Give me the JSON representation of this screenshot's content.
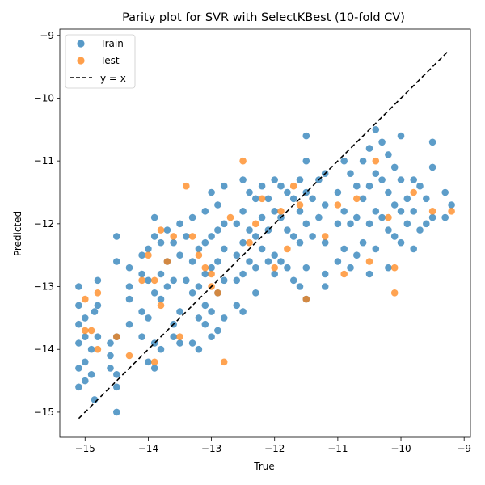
{
  "chart_data": {
    "type": "scatter",
    "title": "Parity plot for SVR with SelectKBest (10-fold CV)",
    "xlabel": "True",
    "ylabel": "Predicted",
    "xlim": [
      -15.4,
      -8.9
    ],
    "ylim": [
      -15.4,
      -8.9
    ],
    "xticks": [
      -15,
      -14,
      -13,
      -12,
      -11,
      -10,
      -9
    ],
    "yticks": [
      -15,
      -14,
      -13,
      -12,
      -11,
      -10,
      -9
    ],
    "tick_labels": [
      "−15",
      "−14",
      "−13",
      "−12",
      "−11",
      "−10",
      "−9"
    ],
    "grid": false,
    "legend_position": "top-left",
    "series": [
      {
        "name": "Train",
        "color": "#1f77b4",
        "points": [
          [
            -15.1,
            -13.0
          ],
          [
            -15.1,
            -13.3
          ],
          [
            -15.1,
            -13.6
          ],
          [
            -15.1,
            -13.9
          ],
          [
            -15.1,
            -14.3
          ],
          [
            -15.1,
            -14.6
          ],
          [
            -15.0,
            -13.5
          ],
          [
            -15.0,
            -13.8
          ],
          [
            -15.0,
            -14.2
          ],
          [
            -15.0,
            -14.5
          ],
          [
            -14.9,
            -14.0
          ],
          [
            -14.9,
            -14.4
          ],
          [
            -14.85,
            -13.4
          ],
          [
            -14.85,
            -14.8
          ],
          [
            -14.8,
            -13.3
          ],
          [
            -14.8,
            -13.8
          ],
          [
            -14.8,
            -12.9
          ],
          [
            -14.6,
            -13.9
          ],
          [
            -14.6,
            -14.3
          ],
          [
            -14.6,
            -14.1
          ],
          [
            -14.5,
            -12.2
          ],
          [
            -14.5,
            -12.6
          ],
          [
            -14.5,
            -13.8
          ],
          [
            -14.5,
            -14.4
          ],
          [
            -14.5,
            -14.6
          ],
          [
            -14.5,
            -15.0
          ],
          [
            -14.3,
            -12.7
          ],
          [
            -14.3,
            -13.0
          ],
          [
            -14.3,
            -13.2
          ],
          [
            -14.3,
            -13.6
          ],
          [
            -14.1,
            -12.5
          ],
          [
            -14.1,
            -12.8
          ],
          [
            -14.1,
            -13.4
          ],
          [
            -14.1,
            -13.8
          ],
          [
            -14.0,
            -12.4
          ],
          [
            -14.0,
            -12.9
          ],
          [
            -14.0,
            -13.5
          ],
          [
            -14.0,
            -14.2
          ],
          [
            -13.9,
            -11.9
          ],
          [
            -13.9,
            -12.2
          ],
          [
            -13.9,
            -13.1
          ],
          [
            -13.9,
            -13.9
          ],
          [
            -13.9,
            -14.3
          ],
          [
            -13.8,
            -12.3
          ],
          [
            -13.8,
            -12.8
          ],
          [
            -13.8,
            -13.2
          ],
          [
            -13.8,
            -14.0
          ],
          [
            -13.7,
            -12.1
          ],
          [
            -13.7,
            -12.6
          ],
          [
            -13.7,
            -13.0
          ],
          [
            -13.6,
            -12.3
          ],
          [
            -13.6,
            -12.9
          ],
          [
            -13.6,
            -13.6
          ],
          [
            -13.6,
            -13.8
          ],
          [
            -13.5,
            -12.0
          ],
          [
            -13.5,
            -12.5
          ],
          [
            -13.5,
            -13.4
          ],
          [
            -13.5,
            -13.9
          ],
          [
            -13.4,
            -12.2
          ],
          [
            -13.4,
            -12.9
          ],
          [
            -13.3,
            -11.9
          ],
          [
            -13.3,
            -12.6
          ],
          [
            -13.3,
            -13.1
          ],
          [
            -13.3,
            -13.9
          ],
          [
            -13.2,
            -12.4
          ],
          [
            -13.2,
            -13.0
          ],
          [
            -13.2,
            -13.5
          ],
          [
            -13.2,
            -14.0
          ],
          [
            -13.1,
            -11.8
          ],
          [
            -13.1,
            -12.3
          ],
          [
            -13.1,
            -12.8
          ],
          [
            -13.1,
            -13.3
          ],
          [
            -13.1,
            -13.6
          ],
          [
            -13.0,
            -11.5
          ],
          [
            -13.0,
            -12.2
          ],
          [
            -13.0,
            -12.7
          ],
          [
            -13.0,
            -13.4
          ],
          [
            -13.0,
            -13.8
          ],
          [
            -12.9,
            -11.7
          ],
          [
            -12.9,
            -12.1
          ],
          [
            -12.9,
            -12.6
          ],
          [
            -12.9,
            -13.1
          ],
          [
            -12.9,
            -13.7
          ],
          [
            -12.8,
            -11.4
          ],
          [
            -12.8,
            -12.0
          ],
          [
            -12.8,
            -12.4
          ],
          [
            -12.8,
            -12.9
          ],
          [
            -12.8,
            -13.5
          ],
          [
            -12.6,
            -12.0
          ],
          [
            -12.6,
            -12.5
          ],
          [
            -12.6,
            -12.9
          ],
          [
            -12.6,
            -13.3
          ],
          [
            -12.5,
            -11.3
          ],
          [
            -12.5,
            -11.8
          ],
          [
            -12.5,
            -12.3
          ],
          [
            -12.5,
            -12.8
          ],
          [
            -12.5,
            -13.4
          ],
          [
            -12.4,
            -11.5
          ],
          [
            -12.4,
            -12.1
          ],
          [
            -12.4,
            -12.6
          ],
          [
            -12.3,
            -11.6
          ],
          [
            -12.3,
            -12.2
          ],
          [
            -12.3,
            -12.7
          ],
          [
            -12.3,
            -13.1
          ],
          [
            -12.2,
            -11.4
          ],
          [
            -12.2,
            -11.9
          ],
          [
            -12.2,
            -12.4
          ],
          [
            -12.1,
            -11.6
          ],
          [
            -12.1,
            -12.1
          ],
          [
            -12.1,
            -12.6
          ],
          [
            -12.0,
            -11.3
          ],
          [
            -12.0,
            -11.8
          ],
          [
            -12.0,
            -12.5
          ],
          [
            -12.0,
            -12.8
          ],
          [
            -11.9,
            -11.4
          ],
          [
            -11.9,
            -11.9
          ],
          [
            -11.9,
            -12.6
          ],
          [
            -11.8,
            -11.5
          ],
          [
            -11.8,
            -12.1
          ],
          [
            -11.8,
            -12.7
          ],
          [
            -11.7,
            -11.6
          ],
          [
            -11.7,
            -12.2
          ],
          [
            -11.7,
            -12.9
          ],
          [
            -11.6,
            -11.3
          ],
          [
            -11.6,
            -11.8
          ],
          [
            -11.6,
            -12.3
          ],
          [
            -11.6,
            -13.0
          ],
          [
            -11.5,
            -10.6
          ],
          [
            -11.5,
            -11.0
          ],
          [
            -11.5,
            -11.5
          ],
          [
            -11.5,
            -12.0
          ],
          [
            -11.5,
            -12.7
          ],
          [
            -11.5,
            -13.2
          ],
          [
            -11.4,
            -11.6
          ],
          [
            -11.4,
            -12.2
          ],
          [
            -11.3,
            -11.3
          ],
          [
            -11.3,
            -11.9
          ],
          [
            -11.2,
            -11.2
          ],
          [
            -11.2,
            -11.7
          ],
          [
            -11.2,
            -12.3
          ],
          [
            -11.2,
            -12.8
          ],
          [
            -11.2,
            -13.0
          ],
          [
            -11.0,
            -11.5
          ],
          [
            -11.0,
            -12.0
          ],
          [
            -11.0,
            -12.6
          ],
          [
            -10.9,
            -11.0
          ],
          [
            -10.9,
            -11.8
          ],
          [
            -10.9,
            -12.4
          ],
          [
            -10.8,
            -11.2
          ],
          [
            -10.8,
            -12.0
          ],
          [
            -10.8,
            -12.7
          ],
          [
            -10.7,
            -11.4
          ],
          [
            -10.7,
            -11.9
          ],
          [
            -10.7,
            -12.5
          ],
          [
            -10.6,
            -11.0
          ],
          [
            -10.6,
            -11.6
          ],
          [
            -10.6,
            -12.3
          ],
          [
            -10.5,
            -10.8
          ],
          [
            -10.5,
            -11.4
          ],
          [
            -10.5,
            -12.0
          ],
          [
            -10.5,
            -12.8
          ],
          [
            -10.4,
            -10.5
          ],
          [
            -10.4,
            -11.2
          ],
          [
            -10.4,
            -11.8
          ],
          [
            -10.4,
            -12.4
          ],
          [
            -10.3,
            -10.7
          ],
          [
            -10.3,
            -11.3
          ],
          [
            -10.3,
            -11.9
          ],
          [
            -10.2,
            -10.9
          ],
          [
            -10.2,
            -11.5
          ],
          [
            -10.2,
            -12.1
          ],
          [
            -10.2,
            -12.7
          ],
          [
            -10.1,
            -11.1
          ],
          [
            -10.1,
            -11.7
          ],
          [
            -10.1,
            -12.2
          ],
          [
            -10.0,
            -10.6
          ],
          [
            -10.0,
            -11.3
          ],
          [
            -10.0,
            -11.8
          ],
          [
            -10.0,
            -12.3
          ],
          [
            -9.9,
            -11.6
          ],
          [
            -9.9,
            -12.0
          ],
          [
            -9.8,
            -11.3
          ],
          [
            -9.8,
            -11.8
          ],
          [
            -9.8,
            -12.4
          ],
          [
            -9.7,
            -11.4
          ],
          [
            -9.7,
            -12.1
          ],
          [
            -9.6,
            -11.6
          ],
          [
            -9.6,
            -12.0
          ],
          [
            -9.5,
            -10.7
          ],
          [
            -9.5,
            -11.1
          ],
          [
            -9.5,
            -11.9
          ],
          [
            -9.3,
            -11.5
          ],
          [
            -9.3,
            -11.9
          ],
          [
            -9.2,
            -11.7
          ]
        ]
      },
      {
        "name": "Test",
        "color": "#ff7f0e",
        "points": [
          [
            -15.0,
            -13.2
          ],
          [
            -15.0,
            -13.7
          ],
          [
            -14.9,
            -13.7
          ],
          [
            -14.8,
            -13.1
          ],
          [
            -14.8,
            -14.0
          ],
          [
            -14.5,
            -13.8
          ],
          [
            -14.3,
            -14.1
          ],
          [
            -14.1,
            -12.9
          ],
          [
            -14.0,
            -12.5
          ],
          [
            -13.9,
            -12.9
          ],
          [
            -13.9,
            -14.2
          ],
          [
            -13.8,
            -12.1
          ],
          [
            -13.8,
            -13.3
          ],
          [
            -13.7,
            -12.6
          ],
          [
            -13.6,
            -12.2
          ],
          [
            -13.5,
            -13.8
          ],
          [
            -13.4,
            -11.4
          ],
          [
            -13.3,
            -12.2
          ],
          [
            -13.2,
            -12.5
          ],
          [
            -13.1,
            -12.7
          ],
          [
            -13.0,
            -12.8
          ],
          [
            -13.0,
            -13.0
          ],
          [
            -12.9,
            -13.1
          ],
          [
            -12.8,
            -14.2
          ],
          [
            -12.7,
            -11.9
          ],
          [
            -12.5,
            -11.0
          ],
          [
            -12.4,
            -12.3
          ],
          [
            -12.3,
            -12.0
          ],
          [
            -12.2,
            -11.6
          ],
          [
            -12.0,
            -12.7
          ],
          [
            -11.9,
            -11.8
          ],
          [
            -11.8,
            -12.4
          ],
          [
            -11.7,
            -11.4
          ],
          [
            -11.6,
            -11.7
          ],
          [
            -11.5,
            -13.2
          ],
          [
            -11.2,
            -12.2
          ],
          [
            -11.0,
            -11.7
          ],
          [
            -10.9,
            -12.8
          ],
          [
            -10.7,
            -11.6
          ],
          [
            -10.5,
            -12.6
          ],
          [
            -10.4,
            -11.0
          ],
          [
            -10.2,
            -11.9
          ],
          [
            -10.1,
            -12.7
          ],
          [
            -10.1,
            -13.1
          ],
          [
            -9.8,
            -11.5
          ],
          [
            -9.5,
            -11.8
          ],
          [
            -9.2,
            -11.8
          ]
        ]
      }
    ],
    "reference_line": {
      "name": "y = x",
      "color": "#000000",
      "style": "dashed",
      "from": -15.1,
      "to": -9.25
    }
  }
}
